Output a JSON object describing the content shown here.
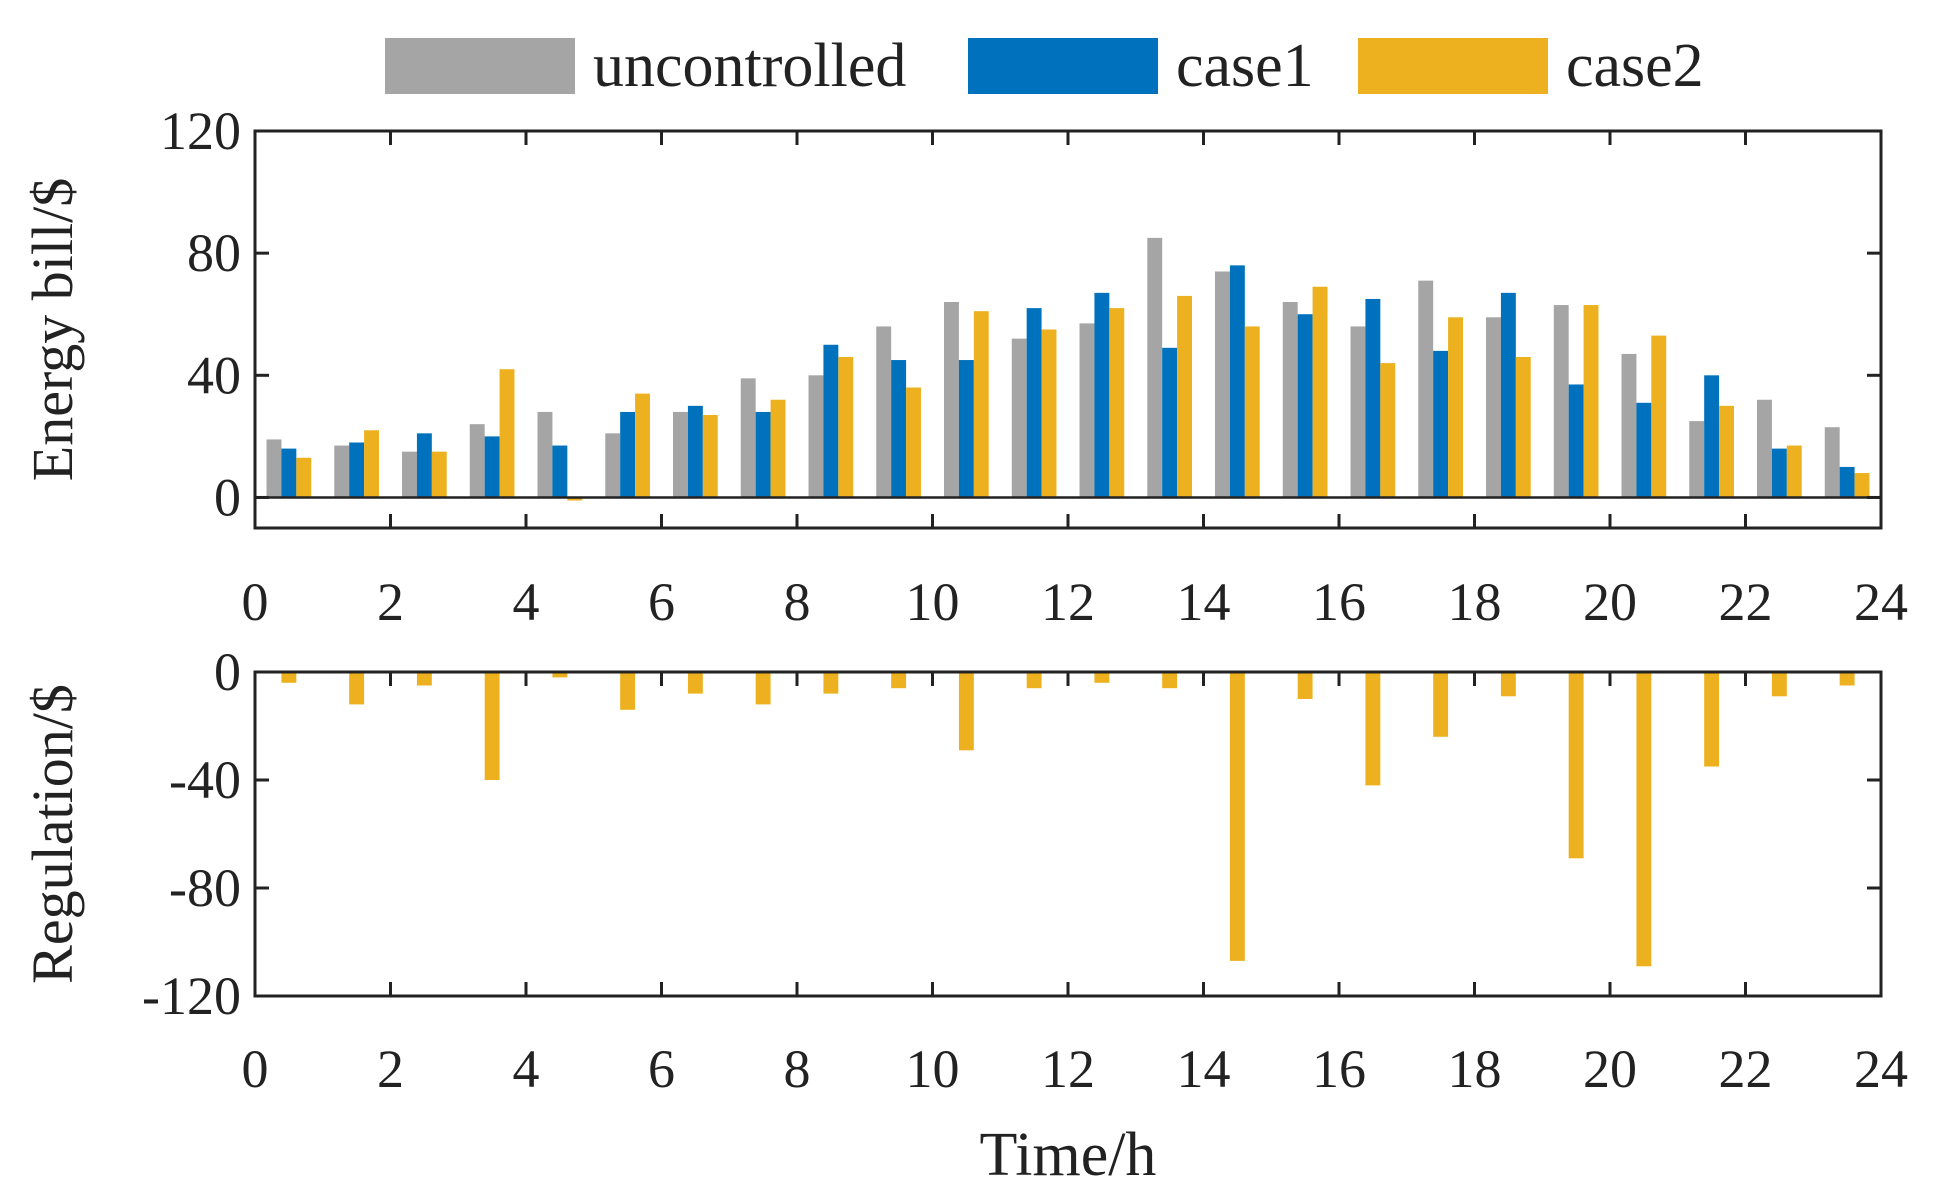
{
  "chart_data": [
    {
      "type": "bar",
      "y_label": "Energy bill/$",
      "x": [
        0.5,
        1.5,
        2.5,
        3.5,
        4.5,
        5.5,
        6.5,
        7.5,
        8.5,
        9.5,
        10.5,
        11.5,
        12.5,
        13.5,
        14.5,
        15.5,
        16.5,
        17.5,
        18.5,
        19.5,
        20.5,
        21.5,
        22.5,
        23.5
      ],
      "series": [
        {
          "name": "uncontrolled",
          "color": "#a5a5a5",
          "values": [
            19,
            17,
            15,
            24,
            28,
            21,
            28,
            39,
            40,
            56,
            64,
            52,
            57,
            85,
            74,
            64,
            56,
            71,
            59,
            63,
            47,
            25,
            32,
            23
          ]
        },
        {
          "name": "case1",
          "color": "#0072bd",
          "values": [
            16,
            18,
            21,
            20,
            17,
            28,
            30,
            28,
            50,
            45,
            45,
            62,
            67,
            49,
            76,
            60,
            65,
            48,
            67,
            37,
            31,
            40,
            16,
            10
          ]
        },
        {
          "name": "case2",
          "color": "#edb120",
          "values": [
            13,
            22,
            15,
            42,
            -1,
            34,
            27,
            32,
            46,
            36,
            61,
            55,
            62,
            66,
            56,
            69,
            44,
            59,
            46,
            63,
            53,
            30,
            17,
            8
          ]
        }
      ],
      "xlim": [
        0,
        24
      ],
      "xticks": [
        0,
        2,
        4,
        6,
        8,
        10,
        12,
        14,
        16,
        18,
        20,
        22,
        24
      ],
      "ylim": [
        -10,
        120
      ],
      "yticks": [
        0,
        40,
        80,
        120
      ]
    },
    {
      "type": "bar",
      "x_label": "Time/h",
      "y_label": "Regulation/$",
      "x": [
        0.5,
        1.5,
        2.5,
        3.5,
        4.5,
        5.5,
        6.5,
        7.5,
        8.5,
        9.5,
        10.5,
        11.5,
        12.5,
        13.5,
        14.5,
        15.5,
        16.5,
        17.5,
        18.5,
        19.5,
        20.5,
        21.5,
        22.5,
        23.5
      ],
      "series": [
        {
          "color": "#edb120",
          "values": [
            -4,
            -12,
            -5,
            -40,
            -2,
            -14,
            -8,
            -12,
            -8,
            -6,
            -29,
            -6,
            -4,
            -6,
            -107,
            -10,
            -42,
            -24,
            -9,
            -69,
            -109,
            -35,
            -9,
            -5
          ]
        }
      ],
      "xlim": [
        0,
        24
      ],
      "xticks": [
        0,
        2,
        4,
        6,
        8,
        10,
        12,
        14,
        16,
        18,
        20,
        22,
        24
      ],
      "ylim": [
        -120,
        0
      ],
      "yticks": [
        0,
        -40,
        -80,
        -120
      ]
    }
  ]
}
